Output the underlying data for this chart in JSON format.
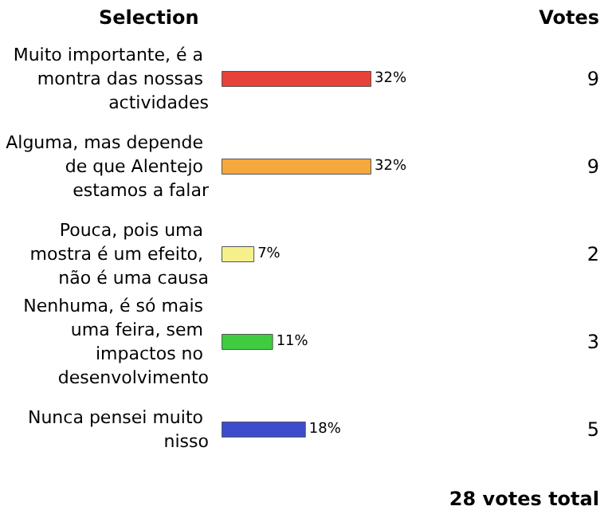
{
  "chart_data": {
    "type": "bar",
    "orientation": "horizontal",
    "categories": [
      "Muito importante, é a montra das nossas actividades",
      "Alguma, mas depende de que Alentejo estamos a falar",
      "Pouca, pois uma mostra é um efeito, não é uma causa",
      "Nenhuma, é só mais uma feira, sem impactos no desenvolvimento",
      "Nunca pensei muito nisso"
    ],
    "values": [
      32,
      32,
      7,
      11,
      18
    ],
    "colors": [
      "#e8413a",
      "#f5a83c",
      "#f6f08c",
      "#3fcc3f",
      "#3c4ccc"
    ],
    "value_labels": [
      "32%",
      "32%",
      "7%",
      "11%",
      "18%"
    ],
    "annotations": [
      "Selection",
      "Votes",
      "9",
      "9",
      "2",
      "3",
      "5",
      "28 votes total"
    ],
    "grid": false
  }
}
